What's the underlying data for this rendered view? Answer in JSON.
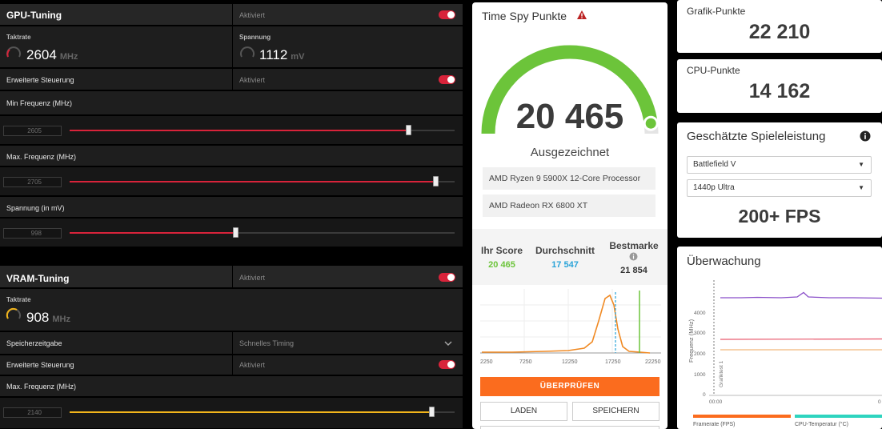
{
  "gpu": {
    "title": "GPU-Tuning",
    "status": "Aktiviert",
    "clock_label": "Taktrate",
    "clock_value": "2604",
    "clock_unit": "MHz",
    "voltage_label": "Spannung",
    "voltage_value": "1112",
    "voltage_unit": "mV",
    "advanced_label": "Erweiterte Steuerung",
    "advanced_status": "Aktiviert",
    "min_freq_label": "Min Frequenz (MHz)",
    "min_freq_value": "2605",
    "min_freq_level": 0.88,
    "max_freq_label": "Max. Frequenz (MHz)",
    "max_freq_value": "2705",
    "max_freq_level": 0.95,
    "voltage_slider_label": "Spannung (in mV)",
    "voltage_slider_value": "998",
    "voltage_slider_level": 0.43
  },
  "vram": {
    "title": "VRAM-Tuning",
    "status": "Aktiviert",
    "clock_label": "Taktrate",
    "clock_value": "908",
    "clock_unit": "MHz",
    "timing_label": "Speicherzeitgabe",
    "timing_value": "Schnelles Timing",
    "advanced_label": "Erweiterte Steuerung",
    "advanced_status": "Aktiviert",
    "max_freq_label": "Max. Frequenz (MHz)",
    "max_freq_value": "2140",
    "max_freq_level": 0.94
  },
  "colors": {
    "accent_red": "#d8233a",
    "accent_yellow": "#f2b51b",
    "score_green": "#6cc43a",
    "avg_blue": "#29a3d8",
    "orange": "#fb6c1e"
  },
  "timespy": {
    "title": "Time Spy Punkte",
    "score": "20 465",
    "rating": "Ausgezeichnet",
    "gauge_level": 0.96,
    "cpu": "AMD Ryzen 9 5900X 12-Core Processor",
    "gpu": "AMD Radeon RX 6800 XT",
    "your_score_label": "Ihr Score",
    "your_score": "20 465",
    "average_label": "Durchschnitt",
    "average": "17 547",
    "best_label": "Bestmarke",
    "best": "21 854",
    "dist_ticks": [
      "2250",
      "7250",
      "12250",
      "17250",
      "22250"
    ],
    "check_button": "ÜBERPRÜFEN",
    "load_button": "LADEN",
    "save_button": "SPEICHERN"
  },
  "graphics": {
    "label": "Grafik-Punkte",
    "value": "22 210"
  },
  "cpu_score": {
    "label": "CPU-Punkte",
    "value": "14 162"
  },
  "game_perf": {
    "title": "Geschätzte Spieleleistung",
    "game": "Battlefield V",
    "preset": "1440p Ultra",
    "fps": "200+ FPS"
  },
  "monitor": {
    "title": "Überwachung",
    "ylabel": "Frequenz (MHz)",
    "marker": "Grafiktest 1",
    "yticks": [
      "4000",
      "3000",
      "2000",
      "1000",
      "0"
    ],
    "xstart": "00:00",
    "xend": "0",
    "legend1": "Framerate (FPS)",
    "legend2": "CPU-Temperatur (°C)"
  }
}
